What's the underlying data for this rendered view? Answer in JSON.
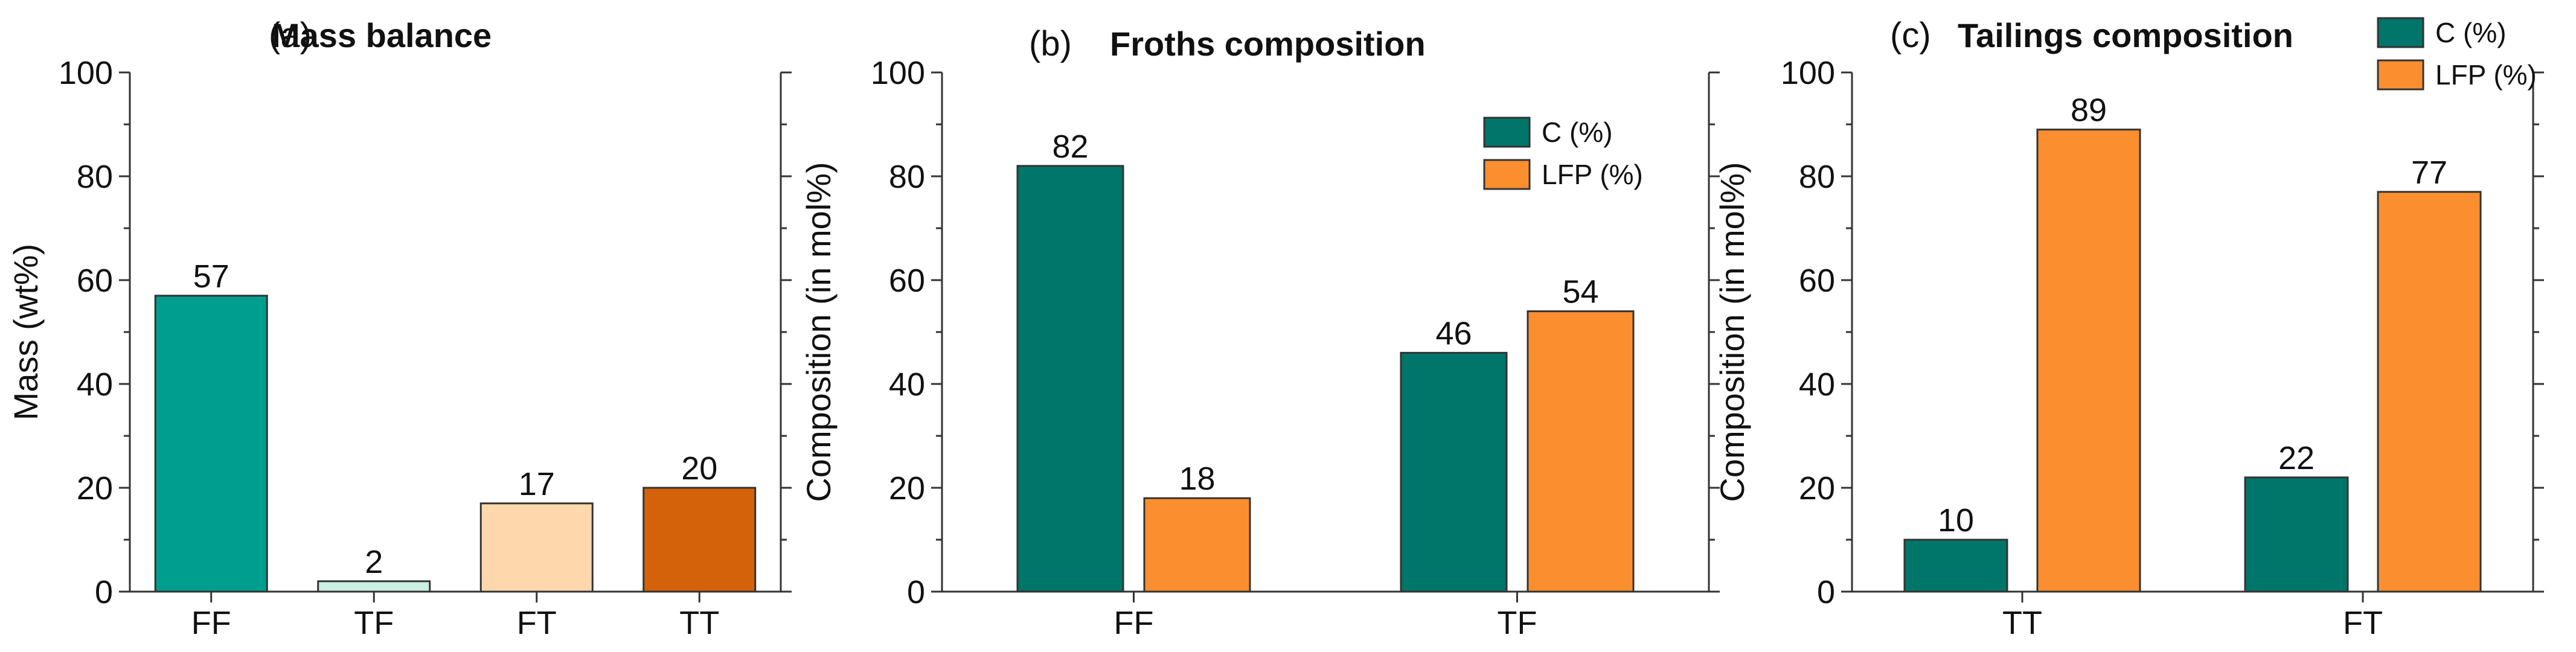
{
  "chart_data": [
    {
      "type": "bar",
      "panel_label": "(a)",
      "title": "Mass balance",
      "xlabel": "",
      "ylabel": "Mass (wt%)",
      "ylim": [
        0,
        100
      ],
      "yticks": [
        0,
        20,
        40,
        60,
        80,
        100
      ],
      "grid": false,
      "categories": [
        "FF",
        "TF",
        "FT",
        "TT"
      ],
      "values": [
        57,
        2,
        17,
        20
      ],
      "data_labels": [
        "57",
        "2",
        "17",
        "20"
      ],
      "colors": [
        "#009e8e",
        "#c9f0e3",
        "#ffd7ad",
        "#d4620a"
      ]
    },
    {
      "type": "bar",
      "panel_label": "(b)",
      "title": "Froths composition",
      "xlabel": "",
      "ylabel": "Composition (in mol%)",
      "ylim": [
        0,
        100
      ],
      "yticks": [
        0,
        20,
        40,
        60,
        80,
        100
      ],
      "grid": false,
      "legend_position": "top-right",
      "categories": [
        "FF",
        "TF"
      ],
      "series": [
        {
          "name": "C (%)",
          "values": [
            82,
            46
          ],
          "color": "#00756a"
        },
        {
          "name": "LFP (%)",
          "values": [
            18,
            54
          ],
          "color": "#fb8f2f"
        }
      ]
    },
    {
      "type": "bar",
      "panel_label": "(c)",
      "title": "Tailings composition",
      "xlabel": "",
      "ylabel": "Composition (in mol%)",
      "ylim": [
        0,
        100
      ],
      "yticks": [
        0,
        20,
        40,
        60,
        80,
        100
      ],
      "grid": false,
      "legend_position": "top-right",
      "categories": [
        "TT",
        "FT"
      ],
      "series": [
        {
          "name": "C (%)",
          "values": [
            10,
            22
          ],
          "color": "#00756a"
        },
        {
          "name": "LFP (%)",
          "values": [
            89,
            77
          ],
          "color": "#fb8f2f"
        }
      ]
    }
  ]
}
